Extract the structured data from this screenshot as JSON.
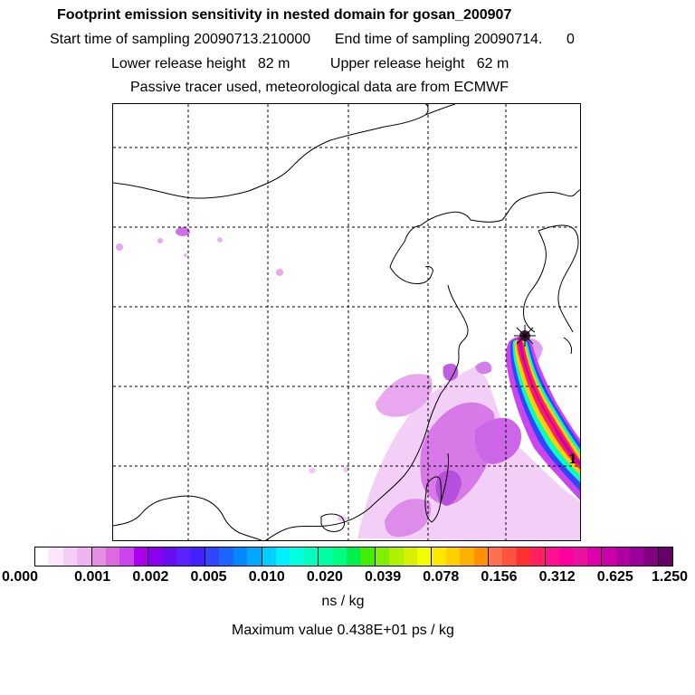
{
  "header": {
    "title": "Footprint emission sensitivity in nested domain for gosan_200907",
    "sampling_line": "Start time of sampling 20090713.210000      End time of sampling 20090714.      0",
    "release_line": "Lower release height   82 m          Upper release height   62 m",
    "tracer_line": "Passive tracer used, meteorological data are from ECMWF"
  },
  "map": {
    "release_marker": "release-site-star",
    "band_label": "1"
  },
  "colorbar": {
    "tick_labels": [
      "0.000",
      "0.001",
      "0.002",
      "0.005",
      "0.010",
      "0.020",
      "0.039",
      "0.078",
      "0.156",
      "0.312",
      "0.625",
      "1.250"
    ],
    "colors": [
      "#ffffff",
      "#fbe6fb",
      "#f5ccf5",
      "#efb3ef",
      "#e68ee6",
      "#dd6add",
      "#cc44ee",
      "#aa00ee",
      "#8800ee",
      "#6a0cf0",
      "#5a22ff",
      "#4422ff",
      "#3344ff",
      "#1a66ff",
      "#0088ff",
      "#00a8ff",
      "#00d0ff",
      "#00f0ff",
      "#00ffe0",
      "#00ffc0",
      "#00ffa0",
      "#00ff80",
      "#00f050",
      "#40f000",
      "#80f000",
      "#b0f000",
      "#d8f000",
      "#f0ff00",
      "#ffe800",
      "#ffd000",
      "#ffb000",
      "#ff9000",
      "#ff7050",
      "#ff5040",
      "#ff3030",
      "#ff2060",
      "#ff1090",
      "#ff00a0",
      "#ee10a0",
      "#dd00aa",
      "#cc00aa",
      "#b000a0",
      "#9a009a",
      "#800080",
      "#660066"
    ],
    "units": "ns / kg"
  },
  "footer": {
    "max_value": "Maximum value  0.438E+01 ps / kg"
  }
}
